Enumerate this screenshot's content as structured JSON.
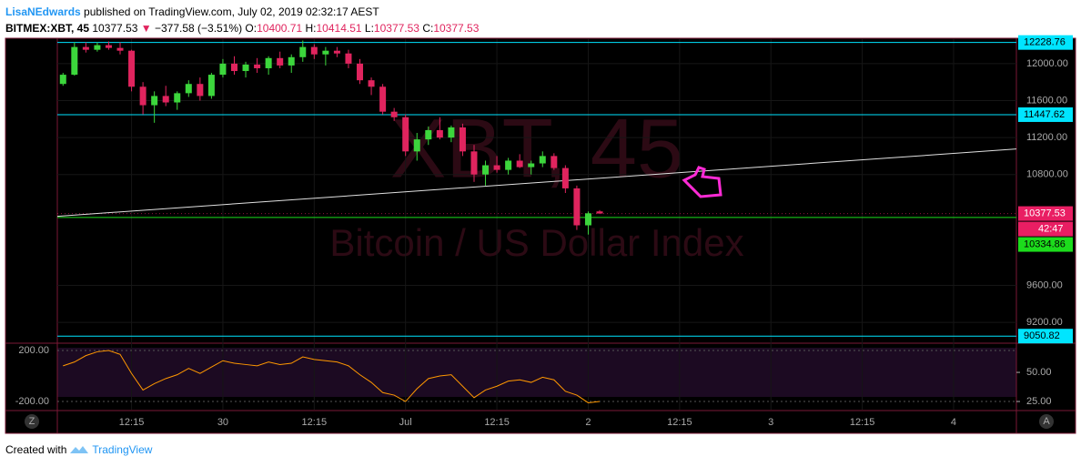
{
  "header": {
    "user": "LisaNEdwards",
    "published": "published on TradingView.com, July 02, 2019 02:32:17 AEST",
    "symbol": "BITMEX:XBT, 45",
    "last": "10377.53",
    "change": "−377.58 (−3.51%)",
    "o_label": "O:",
    "o": "10400.71",
    "h_label": "H:",
    "h": "10414.51",
    "l_label": "L:",
    "l": "10377.53",
    "c_label": "C:",
    "c": "10377.53"
  },
  "ui": {
    "left_button": "Z",
    "right_button": "A"
  },
  "footer": {
    "created": "Created with",
    "brand": "TradingView"
  },
  "chart_data": [
    {
      "type": "candlestick",
      "watermark": "XBT, 45",
      "subtitle": "Bitcoin / US Dollar Index",
      "up_color": "#3cd63c",
      "down_color": "#e0245e",
      "categories": [
        null,
        null,
        null,
        null,
        null,
        null,
        "12:15",
        null,
        null,
        null,
        null,
        null,
        null,
        null,
        "30",
        null,
        null,
        null,
        null,
        null,
        null,
        null,
        "12:15",
        null,
        null,
        null,
        null,
        null,
        null,
        null,
        "Jul",
        null,
        null,
        null,
        null,
        null,
        null,
        null,
        "12:15",
        null,
        null,
        null,
        null,
        null,
        null,
        null,
        "2",
        null,
        null,
        null,
        null,
        null,
        null,
        null,
        "12:15",
        null,
        null,
        null,
        null,
        null,
        null,
        null,
        "3",
        null,
        null,
        null,
        null,
        null,
        null,
        null,
        "12:15",
        null,
        null,
        null,
        null,
        null,
        null,
        null,
        "4",
        null,
        null,
        null,
        null,
        null
      ],
      "ohlc": [
        [
          11780,
          11900,
          11760,
          11880
        ],
        [
          11880,
          12230,
          11870,
          12180
        ],
        [
          12180,
          12230,
          12120,
          12150
        ],
        [
          12150,
          12230,
          12130,
          12200
        ],
        [
          12200,
          12240,
          12150,
          12170
        ],
        [
          12170,
          12230,
          12100,
          12140
        ],
        [
          12140,
          12150,
          11700,
          11750
        ],
        [
          11750,
          11800,
          11450,
          11550
        ],
        [
          11550,
          11700,
          11360,
          11650
        ],
        [
          11650,
          11760,
          11540,
          11580
        ],
        [
          11580,
          11700,
          11500,
          11680
        ],
        [
          11680,
          11820,
          11640,
          11780
        ],
        [
          11780,
          11850,
          11600,
          11650
        ],
        [
          11650,
          11900,
          11620,
          11880
        ],
        [
          11880,
          12050,
          11850,
          12000
        ],
        [
          12000,
          12080,
          11880,
          11920
        ],
        [
          11920,
          12020,
          11850,
          11990
        ],
        [
          11990,
          12060,
          11900,
          11950
        ],
        [
          11950,
          12080,
          11880,
          12060
        ],
        [
          12060,
          12130,
          11950,
          11980
        ],
        [
          11980,
          12100,
          11900,
          12070
        ],
        [
          12070,
          12250,
          12020,
          12180
        ],
        [
          12180,
          12210,
          12050,
          12100
        ],
        [
          12100,
          12180,
          11980,
          12140
        ],
        [
          12140,
          12180,
          12070,
          12110
        ],
        [
          12110,
          12150,
          11950,
          12000
        ],
        [
          12000,
          12050,
          11780,
          11820
        ],
        [
          11820,
          11850,
          11660,
          11750
        ],
        [
          11750,
          11780,
          11450,
          11480
        ],
        [
          11480,
          11520,
          11380,
          11420
        ],
        [
          11420,
          11450,
          11000,
          11050
        ],
        [
          11050,
          11250,
          10950,
          11180
        ],
        [
          11180,
          11320,
          11120,
          11280
        ],
        [
          11280,
          11420,
          11180,
          11200
        ],
        [
          11200,
          11330,
          11150,
          11310
        ],
        [
          11310,
          11350,
          11000,
          11050
        ],
        [
          11050,
          11120,
          10720,
          10800
        ],
        [
          10800,
          10950,
          10680,
          10900
        ],
        [
          10900,
          11000,
          10820,
          10850
        ],
        [
          10850,
          10980,
          10800,
          10950
        ],
        [
          10950,
          11020,
          10870,
          10880
        ],
        [
          10880,
          10950,
          10800,
          10920
        ],
        [
          10920,
          11050,
          10880,
          11000
        ],
        [
          11000,
          11030,
          10850,
          10870
        ],
        [
          10870,
          10900,
          10600,
          10650
        ],
        [
          10650,
          10680,
          10200,
          10250
        ],
        [
          10250,
          10400,
          10150,
          10380
        ],
        [
          10400.71,
          10414.51,
          10377.53,
          10377.53
        ],
        null,
        null,
        null,
        null,
        null,
        null,
        null,
        null,
        null,
        null,
        null,
        null,
        null,
        null,
        null,
        null,
        null,
        null,
        null,
        null,
        null,
        null,
        null,
        null,
        null,
        null,
        null,
        null,
        null,
        null,
        null,
        null,
        null,
        null,
        null,
        null
      ],
      "ylim": [
        8994,
        12265
      ],
      "yticks": [
        {
          "value": 12000,
          "label": "12000.00"
        },
        {
          "value": 11600,
          "label": "11600.00"
        },
        {
          "value": 11200,
          "label": "11200.00"
        },
        {
          "value": 10800,
          "label": "10800.00"
        },
        {
          "value": 9600,
          "label": "9600.00"
        },
        {
          "value": 9200,
          "label": "9200.00"
        }
      ],
      "grid": true,
      "levels": [
        {
          "value": 12228.76,
          "color": "#00e5ff"
        },
        {
          "value": 11447.62,
          "color": "#00e5ff"
        },
        {
          "value": 10334.86,
          "color": "#1cdc1c"
        },
        {
          "value": 9050.82,
          "color": "#00e5ff"
        }
      ],
      "last_price": 10377.53,
      "last_color": "#e91e63",
      "countdown": "42:47",
      "trendline": [
        10348,
        11076
      ],
      "trendline_color": "#e0e0e0"
    },
    {
      "type": "line",
      "color": "#ff9800",
      "values": [
        80,
        110,
        160,
        190,
        200,
        170,
        20,
        -110,
        -60,
        -20,
        10,
        60,
        20,
        70,
        120,
        100,
        90,
        80,
        110,
        90,
        100,
        150,
        130,
        120,
        110,
        80,
        10,
        -50,
        -130,
        -150,
        -200,
        -100,
        -20,
        0,
        10,
        -80,
        -170,
        -110,
        -80,
        -40,
        -30,
        -50,
        -10,
        -30,
        -120,
        -150,
        -210,
        -200
      ],
      "ylim": [
        -264,
        236
      ],
      "yticks": [
        {
          "value": 200,
          "label": "200.00"
        },
        {
          "value": -200,
          "label": "-200.00"
        }
      ],
      "y2lim": [
        18,
        72.7
      ],
      "y2ticks": [
        {
          "value": 50,
          "label": "50.00"
        },
        {
          "value": 25,
          "label": "25.00"
        }
      ]
    }
  ]
}
